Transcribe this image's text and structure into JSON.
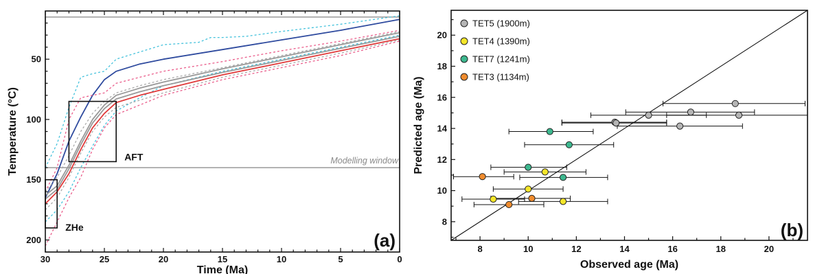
{
  "chart_data": [
    {
      "type": "line",
      "panel_label": "(a)",
      "xlabel": "Time (Ma)",
      "ylabel": "Temperature (°C)",
      "xlim": [
        30,
        0
      ],
      "ylim": [
        210,
        10
      ],
      "x_ticks": [
        30,
        25,
        20,
        15,
        10,
        5,
        0
      ],
      "y_ticks": [
        50,
        100,
        150,
        200
      ],
      "y_reversed": true,
      "grid": false,
      "boxes": [
        {
          "label": "ZHe",
          "x0": 30,
          "x1": 29,
          "y0": 150,
          "y1": 190
        },
        {
          "label": "AFT",
          "x0": 28,
          "x1": 24,
          "y0": 85,
          "y1": 135
        }
      ],
      "modelling_window": {
        "label": "Modelling window",
        "x0": 30,
        "x1": 0,
        "y0": 15,
        "y1": 140
      },
      "series": [
        {
          "color": "#2e4a9e",
          "style": "solid",
          "x": [
            30,
            29,
            28,
            27,
            26,
            25,
            24,
            22,
            20,
            15,
            10,
            5,
            0
          ],
          "y": [
            165,
            145,
            118,
            98,
            80,
            67,
            60,
            54,
            50,
            42,
            34,
            26,
            17
          ]
        },
        {
          "color": "#45c2dc",
          "style": "dashed",
          "x": [
            30,
            29,
            28,
            27,
            26,
            25,
            24,
            20,
            17,
            16,
            15,
            13,
            10,
            5,
            0
          ],
          "y": [
            140,
            120,
            90,
            65,
            62,
            60,
            50,
            38,
            36,
            32,
            32,
            31,
            27,
            21,
            14
          ]
        },
        {
          "color": "#45c2dc",
          "style": "dashed",
          "x": [
            30,
            29,
            28,
            27,
            26,
            25,
            24,
            22,
            20,
            15,
            10,
            5,
            0
          ],
          "y": [
            185,
            175,
            160,
            140,
            122,
            105,
            93,
            82,
            72,
            60,
            50,
            40,
            30
          ]
        },
        {
          "color": "#999999",
          "style": "solid",
          "x": [
            30,
            29,
            28,
            27,
            26,
            25,
            24,
            22,
            20,
            15,
            10,
            5,
            0
          ],
          "y": [
            163,
            155,
            138,
            118,
            100,
            88,
            80,
            74,
            69,
            58,
            48,
            38,
            28
          ]
        },
        {
          "color": "#999999",
          "style": "solid",
          "x": [
            30,
            29,
            28,
            27,
            26,
            25,
            24,
            22,
            20,
            15,
            10,
            5,
            0
          ],
          "y": [
            166,
            158,
            141,
            121,
            103,
            91,
            83,
            77,
            72,
            61,
            51,
            41,
            31
          ]
        },
        {
          "color": "#e03a3a",
          "style": "solid",
          "x": [
            30,
            29,
            28,
            27,
            26,
            25,
            24,
            22,
            20,
            15,
            10,
            5,
            0
          ],
          "y": [
            170,
            160,
            145,
            125,
            107,
            95,
            86,
            80,
            75,
            63,
            53,
            43,
            33
          ]
        },
        {
          "color": "#ea5c8a",
          "style": "dashed",
          "x": [
            30,
            29,
            28,
            27,
            26,
            25,
            24,
            22,
            20,
            15,
            10,
            5,
            0
          ],
          "y": [
            160,
            140,
            100,
            82,
            80,
            78,
            70,
            65,
            60,
            52,
            43,
            35,
            26
          ]
        },
        {
          "color": "#ea5c8a",
          "style": "dashed",
          "x": [
            30,
            29,
            28,
            27,
            26,
            25,
            24,
            22,
            20,
            15,
            10,
            5,
            0
          ],
          "y": [
            205,
            185,
            165,
            148,
            125,
            107,
            96,
            88,
            80,
            67,
            57,
            47,
            35
          ]
        },
        {
          "color": "#a9a9a9",
          "style": "dashed",
          "x": [
            30,
            29,
            28,
            27,
            26,
            25,
            24,
            22,
            20,
            15,
            10,
            5,
            0
          ],
          "y": [
            160,
            148,
            130,
            110,
            95,
            85,
            78,
            72,
            67,
            57,
            47,
            37,
            27
          ]
        },
        {
          "color": "#a9a9a9",
          "style": "dashed",
          "x": [
            30,
            29,
            28,
            27,
            26,
            25,
            24,
            22,
            20,
            15,
            10,
            5,
            0
          ],
          "y": [
            175,
            165,
            148,
            128,
            110,
            98,
            90,
            84,
            78,
            65,
            55,
            45,
            34
          ]
        }
      ]
    },
    {
      "type": "scatter",
      "panel_label": "(b)",
      "xlabel": "Observed age (Ma)",
      "ylabel": "Predicted age (Ma)",
      "xlim": [
        6.8,
        21.6
      ],
      "ylim": [
        6.8,
        21.6
      ],
      "x_ticks": [
        8,
        10,
        12,
        14,
        16,
        18,
        20
      ],
      "y_ticks": [
        8,
        10,
        12,
        14,
        16,
        18,
        20
      ],
      "grid": false,
      "legend_position": "top-left",
      "reference_line": {
        "slope": 1,
        "intercept": 0
      },
      "series": [
        {
          "name": "TET5 (1900m)",
          "color": "#b5b5b5",
          "points": [
            {
              "x": 18.6,
              "y": 15.6,
              "xmin": 15.6,
              "xmax": 21.5
            },
            {
              "x": 16.75,
              "y": 15.05,
              "xmin": 14.05,
              "xmax": 19.4
            },
            {
              "x": 15.0,
              "y": 14.85,
              "xmin": 12.6,
              "xmax": 17.4
            },
            {
              "x": 18.75,
              "y": 14.85,
              "xmin": 15.75,
              "xmax": 21.6
            },
            {
              "x": 13.6,
              "y": 14.4,
              "xmin": 11.4,
              "xmax": 15.75
            },
            {
              "x": 13.65,
              "y": 14.35,
              "xmin": 11.4,
              "xmax": 15.75
            },
            {
              "x": 16.3,
              "y": 14.15,
              "xmin": 13.7,
              "xmax": 18.9
            }
          ]
        },
        {
          "name": "TET4 (1390m)",
          "color": "#f5e62a",
          "points": [
            {
              "x": 10.7,
              "y": 11.2,
              "xmin": 9.0,
              "xmax": 12.4
            },
            {
              "x": 10.0,
              "y": 10.1,
              "xmin": 8.55,
              "xmax": 11.45
            },
            {
              "x": 8.55,
              "y": 9.45,
              "xmin": 7.25,
              "xmax": 9.85
            },
            {
              "x": 11.45,
              "y": 9.3,
              "xmin": 9.6,
              "xmax": 13.3
            }
          ]
        },
        {
          "name": "TET7 (1241m)",
          "color": "#3db88f",
          "points": [
            {
              "x": 10.9,
              "y": 13.8,
              "xmin": 9.2,
              "xmax": 12.7
            },
            {
              "x": 11.7,
              "y": 12.95,
              "xmin": 9.85,
              "xmax": 13.55
            },
            {
              "x": 10.0,
              "y": 11.5,
              "xmin": 8.45,
              "xmax": 11.6
            },
            {
              "x": 11.45,
              "y": 10.85,
              "xmin": 9.65,
              "xmax": 13.3
            }
          ]
        },
        {
          "name": "TET3 (1134m)",
          "color": "#f08c2e",
          "points": [
            {
              "x": 8.1,
              "y": 10.9,
              "xmin": 6.9,
              "xmax": 9.4
            },
            {
              "x": 10.15,
              "y": 9.5,
              "xmin": 8.45,
              "xmax": 11.75
            },
            {
              "x": 9.2,
              "y": 9.1,
              "xmin": 7.75,
              "xmax": 10.65
            }
          ]
        }
      ]
    }
  ]
}
